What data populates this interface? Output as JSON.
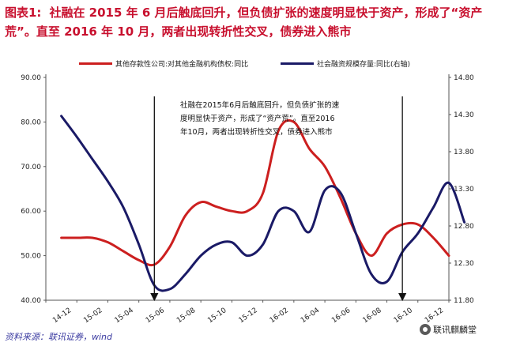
{
  "title": {
    "label": "图表1:",
    "text": "社融在 2015 年 6 月后触底回升，但负债扩张的速度明显快于资产，形成了“资产荒”。直至 2016 年 10 月，两者出现转折性交叉，债券进入熊市"
  },
  "source": "资料来源：联讯证券，wind",
  "watermark": "联讯麒麟堂",
  "chart_data": {
    "type": "line",
    "categories": [
      "14-12",
      "15-02",
      "15-04",
      "15-06",
      "15-08",
      "15-10",
      "15-12",
      "16-02",
      "16-04",
      "16-06",
      "16-08",
      "16-10",
      "16-12"
    ],
    "y_left": {
      "ticks": [
        "40.00",
        "50.00",
        "60.00",
        "70.00",
        "80.00",
        "90.00"
      ],
      "ylim": [
        40,
        90
      ]
    },
    "y_right": {
      "ticks": [
        "11.80",
        "12.30",
        "12.80",
        "13.30",
        "13.80",
        "14.30",
        "14.80"
      ],
      "ylim": [
        11.8,
        14.8
      ]
    },
    "series": [
      {
        "name": "其他存款性公司:对其他金融机构债权:同比",
        "axis": "left",
        "color": "#cc1f1f",
        "points": [
          [
            0,
            54
          ],
          [
            0.5,
            54
          ],
          [
            1,
            54
          ],
          [
            1.5,
            53
          ],
          [
            2,
            51
          ],
          [
            2.5,
            49
          ],
          [
            3,
            48
          ],
          [
            3.5,
            52
          ],
          [
            4,
            59
          ],
          [
            4.5,
            62
          ],
          [
            5,
            61
          ],
          [
            5.5,
            60
          ],
          [
            6,
            60
          ],
          [
            6.5,
            64
          ],
          [
            7,
            78
          ],
          [
            7.5,
            80
          ],
          [
            8,
            74
          ],
          [
            8.5,
            70
          ],
          [
            9,
            63
          ],
          [
            9.5,
            55
          ],
          [
            10,
            50
          ],
          [
            10.5,
            55
          ],
          [
            11,
            57
          ],
          [
            11.5,
            57
          ],
          [
            12,
            54
          ],
          [
            12.5,
            50
          ]
        ]
      },
      {
        "name": "社会融资规模存量:同比(右轴)",
        "axis": "right",
        "color": "#1a1a66",
        "points": [
          [
            0,
            14.28
          ],
          [
            0.5,
            14.0
          ],
          [
            1,
            13.7
          ],
          [
            1.5,
            13.4
          ],
          [
            2,
            13.05
          ],
          [
            2.5,
            12.55
          ],
          [
            3,
            12.0
          ],
          [
            3.5,
            11.95
          ],
          [
            4,
            12.15
          ],
          [
            4.5,
            12.4
          ],
          [
            5,
            12.55
          ],
          [
            5.5,
            12.58
          ],
          [
            6,
            12.4
          ],
          [
            6.5,
            12.55
          ],
          [
            7,
            13.0
          ],
          [
            7.5,
            13.0
          ],
          [
            8,
            12.72
          ],
          [
            8.5,
            13.28
          ],
          [
            9,
            13.25
          ],
          [
            9.5,
            12.7
          ],
          [
            10,
            12.15
          ],
          [
            10.5,
            12.05
          ],
          [
            11,
            12.45
          ],
          [
            11.5,
            12.7
          ],
          [
            12,
            13.05
          ],
          [
            12.5,
            13.38
          ],
          [
            13,
            12.85
          ]
        ]
      }
    ],
    "annotation": {
      "lines": [
        "社融在2015年6月后触底回升，但负债扩张的速",
        "度明显快于资产，形成了“资产荒”。直至2016",
        "年10月，两者出现转折性交叉，债券进入熊市"
      ]
    },
    "markers": [
      {
        "category": "15-06"
      },
      {
        "category": "16-10"
      }
    ]
  }
}
